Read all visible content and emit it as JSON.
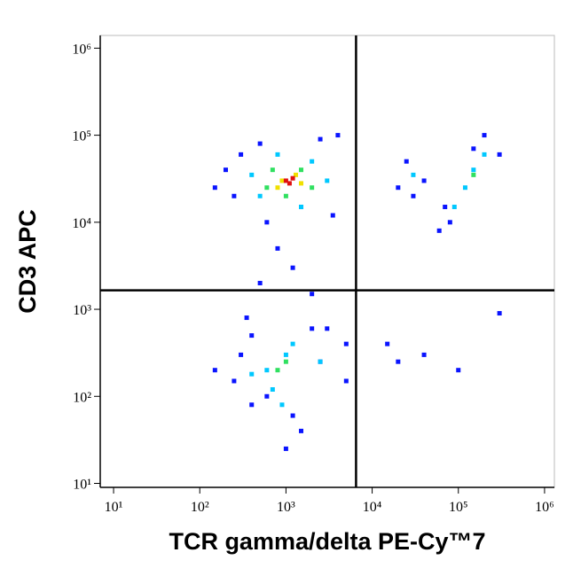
{
  "chart_data": {
    "type": "scatter",
    "xlabel": "TCR gamma/delta PE-Cy™7",
    "ylabel": "CD3 APC",
    "xscale": "log",
    "yscale": "log",
    "xlim": [
      7,
      1300000
    ],
    "ylim": [
      9,
      1400000
    ],
    "xticks": [
      {
        "value": 10,
        "label": "10¹"
      },
      {
        "value": 100,
        "label": "10²"
      },
      {
        "value": 1000,
        "label": "10³"
      },
      {
        "value": 10000,
        "label": "10⁴"
      },
      {
        "value": 100000,
        "label": "10⁵"
      },
      {
        "value": 1000000,
        "label": "10⁶"
      }
    ],
    "yticks": [
      {
        "value": 10,
        "label": "10¹"
      },
      {
        "value": 100,
        "label": "10²"
      },
      {
        "value": 1000,
        "label": "10³"
      },
      {
        "value": 10000,
        "label": "10⁴"
      },
      {
        "value": 100000,
        "label": "10⁵"
      },
      {
        "value": 1000000,
        "label": "10⁶"
      }
    ],
    "gates": {
      "x": 6500,
      "y": 1650
    },
    "series": [
      {
        "color": "#0a14ff",
        "x": [
          300,
          500,
          2500,
          4000,
          1500,
          250,
          150,
          3500,
          600,
          200,
          400,
          2000,
          5000,
          350,
          1200,
          250,
          300,
          2500,
          5000,
          600,
          150,
          400,
          3000,
          1500,
          1000,
          40000,
          20000,
          30000,
          80000,
          70000,
          150000,
          300000,
          60000,
          200000,
          25000,
          15000,
          20000,
          40000,
          100000,
          300000,
          1200,
          2000,
          800,
          500
        ],
        "values": [
          60000,
          80000,
          90000,
          100000,
          15000,
          20000,
          25000,
          12000,
          10000,
          40000,
          500,
          600,
          400,
          800,
          60,
          150,
          300,
          250,
          150,
          100,
          200,
          80,
          600,
          40,
          25,
          30000,
          25000,
          20000,
          10000,
          15000,
          70000,
          60000,
          8000,
          100000,
          50000,
          400,
          250,
          300,
          200,
          900,
          3000,
          1500,
          5000,
          2000
        ]
      },
      {
        "color": "#00c8ff",
        "x": [
          500,
          800,
          2000,
          3000,
          400,
          1500,
          600,
          1000,
          700,
          400,
          1200,
          900,
          2500,
          120000,
          90000,
          150000,
          200000,
          30000
        ],
        "values": [
          20000,
          60000,
          50000,
          30000,
          35000,
          15000,
          200,
          300,
          120,
          180,
          400,
          80,
          250,
          25000,
          15000,
          40000,
          60000,
          35000
        ]
      },
      {
        "color": "#30e060",
        "x": [
          700,
          1500,
          1000,
          600,
          2000,
          800,
          1000,
          150000
        ],
        "values": [
          40000,
          40000,
          20000,
          25000,
          25000,
          200,
          250,
          35000
        ]
      },
      {
        "color": "#f0e000",
        "x": [
          900,
          1300,
          800,
          1500
        ],
        "values": [
          30000,
          35000,
          25000,
          28000
        ]
      },
      {
        "color": "#e01010",
        "x": [
          1000,
          1200,
          1100
        ],
        "values": [
          30000,
          32000,
          28000
        ]
      }
    ]
  }
}
